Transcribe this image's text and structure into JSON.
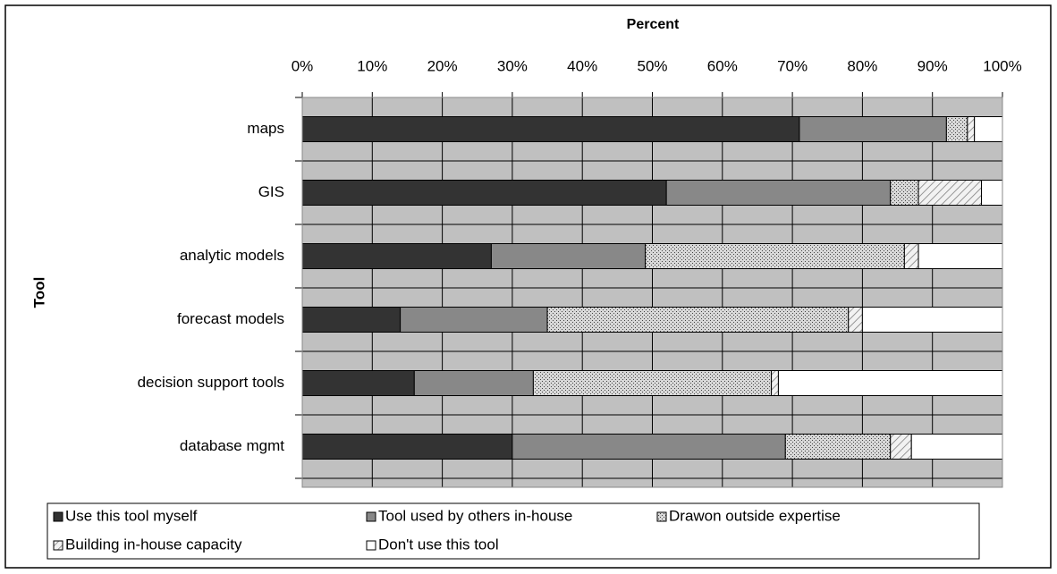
{
  "chart_data": {
    "type": "stacked-barh",
    "xlabel": "Percent",
    "ylabel": "Tool",
    "categories": [
      "maps",
      "GIS",
      "analytic models",
      "forecast models",
      "decision support tools",
      "database mgmt"
    ],
    "series": [
      {
        "name": "Use this tool myself",
        "color": "#333333",
        "pattern": "solid",
        "values": [
          71,
          52,
          27,
          14,
          16,
          30
        ]
      },
      {
        "name": "Tool used by others in-house",
        "color": "#888888",
        "pattern": "solid",
        "values": [
          21,
          32,
          22,
          21,
          17,
          39
        ]
      },
      {
        "name": "Drawon outside expertise",
        "color": "#c8c8c8",
        "pattern": "dots",
        "values": [
          3,
          4,
          37,
          43,
          34,
          15
        ]
      },
      {
        "name": "Building in-house capacity",
        "color": "#e8e8e8",
        "pattern": "hatch",
        "values": [
          1,
          9,
          2,
          2,
          1,
          3
        ]
      },
      {
        "name": "Don't use this tool",
        "color": "#ffffff",
        "pattern": "solid",
        "values": [
          4,
          3,
          12,
          20,
          32,
          13
        ]
      }
    ],
    "xlim": [
      0,
      100
    ],
    "xticks": [
      {
        "value": 0,
        "label": "0%"
      },
      {
        "value": 10,
        "label": "10%"
      },
      {
        "value": 20,
        "label": "20%"
      },
      {
        "value": 30,
        "label": "30%"
      },
      {
        "value": 40,
        "label": "40%"
      },
      {
        "value": 50,
        "label": "50%"
      },
      {
        "value": 60,
        "label": "60%"
      },
      {
        "value": 70,
        "label": "70%"
      },
      {
        "value": 80,
        "label": "80%"
      },
      {
        "value": 90,
        "label": "90%"
      },
      {
        "value": 100,
        "label": "100%"
      }
    ],
    "grid": true,
    "background": "#c0c0c0",
    "legend": "bottom"
  }
}
